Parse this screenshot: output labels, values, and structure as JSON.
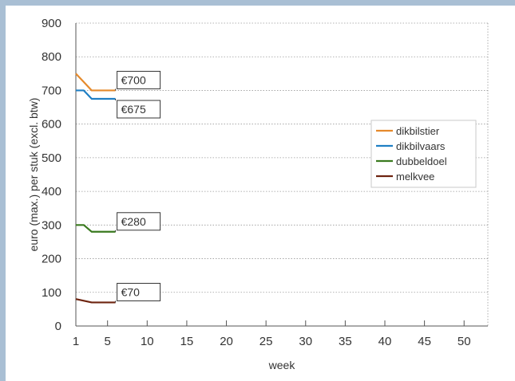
{
  "chart_data": {
    "type": "line",
    "xlabel": "week",
    "ylabel": "euro (max.) per stuk (excl. btw)",
    "xlim": [
      1,
      53
    ],
    "ylim": [
      0,
      900
    ],
    "x_ticks": [
      1,
      5,
      10,
      15,
      20,
      25,
      30,
      35,
      40,
      45,
      50
    ],
    "y_ticks": [
      0,
      100,
      200,
      300,
      400,
      500,
      600,
      700,
      800,
      900
    ],
    "grid": true,
    "legend_position": "right",
    "series": [
      {
        "name": "dikbilstier",
        "color": "#e58a2c",
        "x": [
          1,
          2,
          3,
          4,
          5,
          6
        ],
        "y": [
          750,
          725,
          700,
          700,
          700,
          700
        ]
      },
      {
        "name": "dikbilvaars",
        "color": "#1f7fc4",
        "x": [
          1,
          2,
          3,
          4,
          5,
          6
        ],
        "y": [
          700,
          700,
          675,
          675,
          675,
          675
        ]
      },
      {
        "name": "dubbeldoel",
        "color": "#3a7a1f",
        "x": [
          1,
          2,
          3,
          4,
          5,
          6
        ],
        "y": [
          300,
          300,
          280,
          280,
          280,
          280
        ]
      },
      {
        "name": "melkvee",
        "color": "#6e2410",
        "x": [
          1,
          2,
          3,
          4,
          5,
          6
        ],
        "y": [
          80,
          75,
          70,
          70,
          70,
          70
        ]
      }
    ],
    "annotations": [
      {
        "text": "€700",
        "x": 6,
        "y": 700,
        "side": "above"
      },
      {
        "text": "€675",
        "x": 6,
        "y": 675,
        "side": "below"
      },
      {
        "text": "€280",
        "x": 6,
        "y": 280,
        "side": "above"
      },
      {
        "text": "€70",
        "x": 6,
        "y": 70,
        "side": "above"
      }
    ]
  }
}
